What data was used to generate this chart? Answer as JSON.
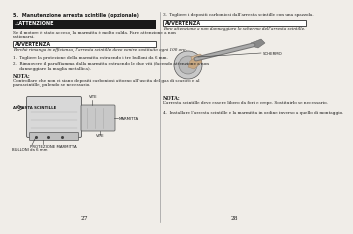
{
  "page_bg": "#f0ede8",
  "text_color": "#1a1a1a",
  "left": {
    "title": "5.  Manutenzione arresta scintille (opzionale)",
    "att_label": "⚠ATTENZIONE",
    "att_body": "Se il motore è stato acceso, la marmitta è molto calda. Fare attenzione a non\nustionarsi.",
    "avv_label": "AVVERTENZA",
    "avv_body": "Perché rimanga in efficienza, l’arresta scintille deve venire sostituito ogni 100 ore.",
    "item1": "1.  Togliere la protezione della marmitta estraendo i tre bulloni da 6 mm.",
    "item2a": "2.  Rimuovere il paraffiamma dalla marmitta estraendo le due viti (facendo attenzione a non",
    "item2b": "     danneggiare la maglia metallica).",
    "nota_label": "NOTA:",
    "nota_body": "Controllare che non ci siano depositi carboniosi attorno all’uscita del gas di scarico e al\nparascintille, pulendo se necessario.",
    "lbl_arresta": "ARRESTA SCINTILLE",
    "lbl_vite1": "VITE",
    "lbl_marmitta": "MARMITTA",
    "lbl_vite2": "VITE",
    "lbl_prot": "PROTEZIONE MARMITTA",
    "lbl_bulloni": "BULLONI da 6 mm",
    "pagenum": "27"
  },
  "right": {
    "step3": "3.  Togliere i depositi carboniosi dall’arresta scintille con una spazzola.",
    "avv_label": "AVVERTENZA",
    "avv_body": "Fare attenzione a non danneggiare lo schermo dell’arresta scintille.",
    "lbl_schermo": "SCHERMO",
    "nota_label": "NOTA:",
    "nota_body": "L’arresta scintille deve essere libero da fori e crepe. Sostituirlo se necessario.",
    "step4": "4.  Installare l’arresta scintille e la marmitta in ordine inverso a quello di montaggio.",
    "pagenum": "28"
  },
  "att_bg": "#1a1a1a",
  "att_fg": "#ffffff",
  "avv_edge": "#444444",
  "divider": "#999999",
  "sf": 4.2,
  "sf_small": 3.5,
  "sf_tiny": 3.0,
  "sf_diag": 2.8
}
